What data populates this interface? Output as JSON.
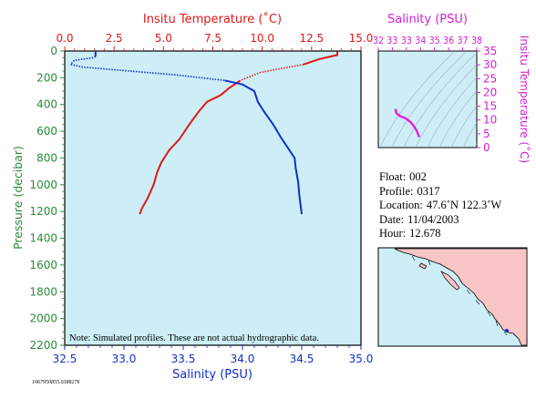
{
  "chart_data": [
    {
      "type": "line",
      "name": "profile",
      "title": "",
      "top_axis": {
        "label": "Insitu Temperature (˚C)",
        "range": [
          0,
          15
        ],
        "ticks": [
          "0.0",
          "2.5",
          "5.0",
          "7.5",
          "10.0",
          "12.5",
          "15.0"
        ]
      },
      "bottom_axis": {
        "label": "Salinity (PSU)",
        "range": [
          32.5,
          35.0
        ],
        "ticks": [
          "32.5",
          "33.0",
          "33.5",
          "34.0",
          "34.5",
          "35.0"
        ]
      },
      "y_axis": {
        "label": "Pressure (decibar)",
        "range": [
          0,
          2200
        ],
        "inverted": true,
        "ticks": [
          "0",
          "200",
          "400",
          "600",
          "800",
          "1000",
          "1200",
          "1400",
          "1600",
          "1800",
          "2000",
          "2200"
        ]
      },
      "grid": false,
      "background": "#cdeef6",
      "series": [
        {
          "axis": "top",
          "color": "#e01818",
          "points": [
            [
              13.8,
              5
            ],
            [
              13.8,
              30
            ],
            [
              12.9,
              60
            ],
            [
              12.1,
              100
            ],
            [
              11.0,
              130
            ],
            [
              9.9,
              160
            ],
            [
              9.4,
              190
            ],
            [
              8.9,
              220
            ],
            [
              8.6,
              250
            ],
            [
              8.3,
              280
            ],
            [
              7.9,
              330
            ],
            [
              7.2,
              380
            ],
            [
              6.8,
              450
            ],
            [
              6.3,
              550
            ],
            [
              5.8,
              660
            ],
            [
              5.3,
              740
            ],
            [
              4.9,
              830
            ],
            [
              4.7,
              900
            ],
            [
              4.5,
              1000
            ],
            [
              4.2,
              1100
            ],
            [
              3.9,
              1180
            ],
            [
              3.8,
              1220
            ]
          ],
          "dotted_segments": [
            [
              12.1,
              100
            ],
            [
              8.9,
              220
            ]
          ]
        },
        {
          "axis": "bottom",
          "color": "#1030c8",
          "points": [
            [
              32.76,
              5
            ],
            [
              32.76,
              40
            ],
            [
              32.74,
              50
            ],
            [
              32.58,
              70
            ],
            [
              32.55,
              100
            ],
            [
              32.65,
              120
            ],
            [
              33.45,
              180
            ],
            [
              33.85,
              220
            ],
            [
              34.0,
              250
            ],
            [
              34.1,
              300
            ],
            [
              34.13,
              380
            ],
            [
              34.18,
              450
            ],
            [
              34.26,
              550
            ],
            [
              34.32,
              640
            ],
            [
              34.38,
              720
            ],
            [
              34.44,
              800
            ],
            [
              34.45,
              880
            ],
            [
              34.47,
              980
            ],
            [
              34.48,
              1080
            ],
            [
              34.49,
              1150
            ],
            [
              34.5,
              1220
            ]
          ],
          "dotted_segments": [
            [
              32.76,
              40
            ],
            [
              33.85,
              220
            ]
          ]
        }
      ],
      "note": "Note: Simulated profiles.  These are not actual hydrographic data."
    },
    {
      "type": "line",
      "name": "ts-diagram",
      "title": "",
      "top_axis": {
        "label": "Salinity (PSU)",
        "range": [
          32,
          38
        ],
        "ticks": [
          "32",
          "33",
          "33",
          "34",
          "35",
          "36",
          "37",
          "38"
        ]
      },
      "y_axis": {
        "label": "Insitu Temperature (˚C)",
        "range": [
          0,
          35
        ],
        "side": "right",
        "ticks": [
          "0",
          "5",
          "10",
          "15",
          "20",
          "25",
          "30",
          "35"
        ]
      },
      "series": [
        {
          "color": "#e020e0",
          "points": [
            [
              33.05,
              14.0
            ],
            [
              33.1,
              12.5
            ],
            [
              33.3,
              11.5
            ],
            [
              33.7,
              10.5
            ],
            [
              34.0,
              9.0
            ],
            [
              34.2,
              7.5
            ],
            [
              34.35,
              6.0
            ],
            [
              34.45,
              4.5
            ],
            [
              34.5,
              3.8
            ]
          ]
        }
      ]
    }
  ],
  "info": {
    "float_label": "Float:",
    "float_value": "002",
    "profile_label": "Profile:",
    "profile_value": "0317",
    "location_label": "Location:",
    "location_value": "47.6˚N  122.3˚W",
    "date_label": "Date:",
    "date_value": "11/04/2003",
    "hour_label": "Hour:",
    "hour_value": "12.678"
  },
  "map": {
    "water_color": "#cdeef6",
    "land_color": "#f8c6c6",
    "marker_color": "#1030c8"
  },
  "footer_id": "1067950855.0388276"
}
